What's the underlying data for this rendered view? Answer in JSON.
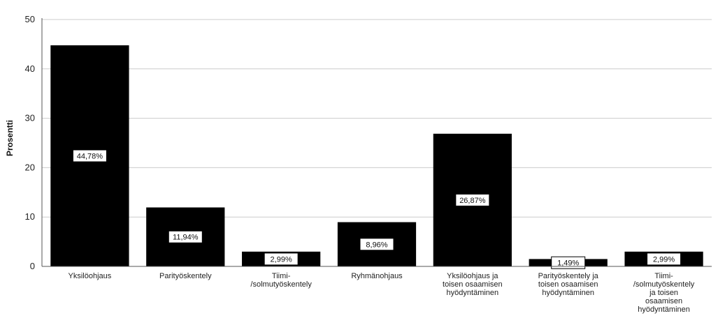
{
  "chart_data": {
    "type": "bar",
    "ylabel": "Prosentti",
    "xlabel": "",
    "ylim": [
      0,
      50
    ],
    "yticks": [
      0,
      10,
      20,
      30,
      40,
      50
    ],
    "grid": true,
    "categories": [
      [
        "Yksilöohjaus"
      ],
      [
        "Parityöskentely"
      ],
      [
        "Tiimi-",
        "/solmutyöskentely"
      ],
      [
        "Ryhmänohjaus"
      ],
      [
        "Yksilöohjaus ja",
        "toisen osaamisen",
        "hyödyntäminen"
      ],
      [
        "Parityöskentely ja",
        "toisen osaamisen",
        "hyödyntäminen"
      ],
      [
        "Tiimi-",
        "/solmutyöskentely",
        "ja toisen",
        "osaamisen",
        "hyödyntäminen"
      ]
    ],
    "values": [
      44.78,
      11.94,
      2.99,
      8.96,
      26.87,
      1.49,
      2.99
    ],
    "data_labels": [
      "44,78%",
      "11,94%",
      "2,99%",
      "8,96%",
      "26,87%",
      "1,49%",
      "2,99%"
    ],
    "bar_color": "#000000",
    "grid_color": "#cccccc"
  }
}
